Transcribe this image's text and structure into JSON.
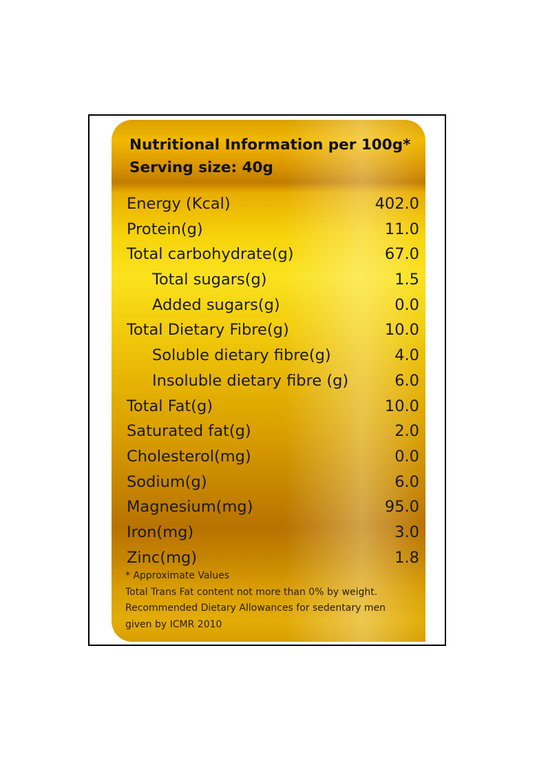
{
  "header": {
    "title": "Nutritional Information per 100g*",
    "serving": "Serving size: 40g"
  },
  "rows": [
    {
      "name": "Energy (Kcal)",
      "value": "402.0",
      "indent": false
    },
    {
      "name": "Protein(g)",
      "value": "11.0",
      "indent": false
    },
    {
      "name": "Total carbohydrate(g)",
      "value": "67.0",
      "indent": false
    },
    {
      "name": "Total sugars(g)",
      "value": "1.5",
      "indent": true
    },
    {
      "name": "Added sugars(g)",
      "value": "0.0",
      "indent": true
    },
    {
      "name": "Total Dietary Fibre(g)",
      "value": "10.0",
      "indent": false
    },
    {
      "name": "Soluble dietary fibre(g)",
      "value": "4.0",
      "indent": true
    },
    {
      "name": "Insoluble dietary fibre (g)",
      "value": "6.0",
      "indent": true
    },
    {
      "name": "Total Fat(g)",
      "value": "10.0",
      "indent": false
    },
    {
      "name": "Saturated fat(g)",
      "value": "2.0",
      "indent": false
    },
    {
      "name": "Cholesterol(mg)",
      "value": "0.0",
      "indent": false
    },
    {
      "name": "Sodium(g)",
      "value": "6.0",
      "indent": false
    },
    {
      "name": "Magnesium(mg)",
      "value": "95.0",
      "indent": false
    },
    {
      "name": "Iron(mg)",
      "value": "3.0",
      "indent": false
    },
    {
      "name": "Zinc(mg)",
      "value": "1.8",
      "indent": false
    }
  ],
  "footnotes": [
    "* Approximate Values",
    "Total Trans Fat content not more than 0% by weight.",
    "Recommended Dietary Allowances for sedentary men",
    "given by ICMR 2010"
  ]
}
